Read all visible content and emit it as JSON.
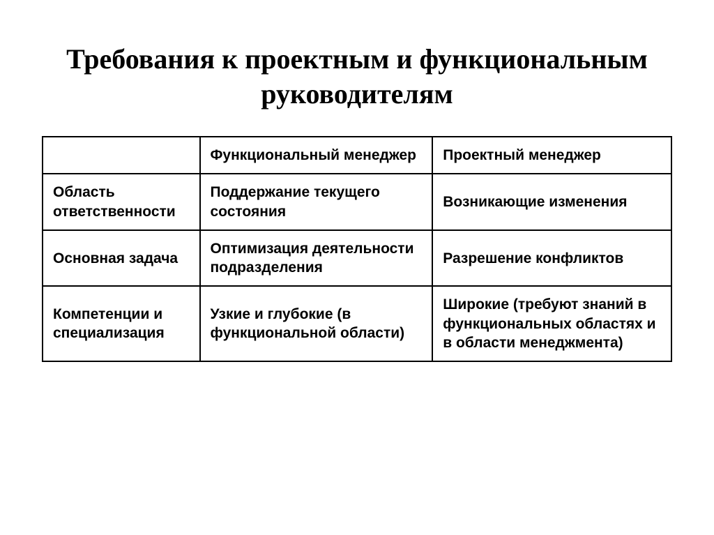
{
  "title": "Требования к проектным и функциональным руководителям",
  "table": {
    "columns": [
      "",
      "Функциональный менеджер",
      "Проектный менеджер"
    ],
    "rows": [
      [
        "Область ответственности",
        "Поддержание текущего состояния",
        "Возникающие изменения"
      ],
      [
        "Основная задача",
        "Оптимизация деятельности подразделения",
        "Разрешение конфликтов"
      ],
      [
        "Компетенции  и специализация",
        "Узкие и глубокие (в функциональной области)",
        "Широкие (требуют знаний в функциональных областях и в области менеджмента)"
      ]
    ]
  },
  "style": {
    "background_color": "#ffffff",
    "title_color": "#000000",
    "title_fontsize": 40,
    "title_font_family": "Times New Roman, Georgia, serif",
    "cell_fontsize": 21,
    "cell_font_weight": "bold",
    "border_color": "#000000",
    "border_width": 2,
    "column_widths_pct": [
      25,
      37,
      38
    ]
  }
}
